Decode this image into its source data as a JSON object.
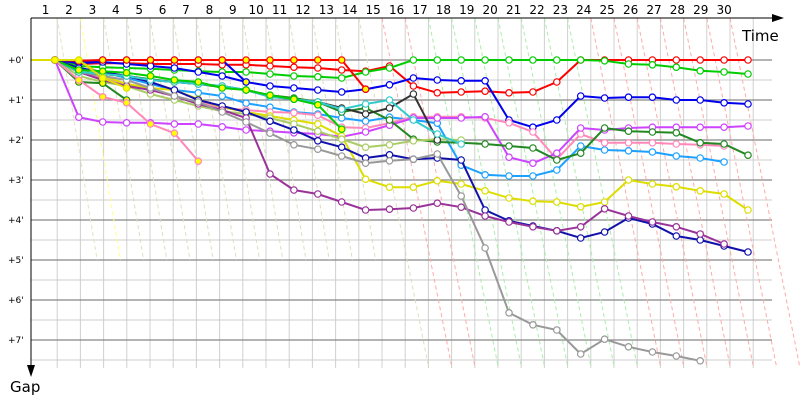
{
  "chart_data": {
    "type": "line",
    "xlabel": "Time",
    "ylabel": "Gap",
    "x_ticks": [
      "1",
      "2",
      "3",
      "4",
      "5",
      "6",
      "7",
      "8",
      "9",
      "10",
      "11",
      "12",
      "13",
      "14",
      "15",
      "16",
      "17",
      "18",
      "19",
      "20",
      "21",
      "22",
      "23",
      "24",
      "25",
      "26",
      "27",
      "28",
      "29",
      "30"
    ],
    "y_ticks": [
      "+0'",
      "+1'",
      "+2'",
      "+3'",
      "+4'",
      "+5'",
      "+6'",
      "+7'"
    ],
    "y_unit": "minutes",
    "ylim": [
      0,
      7.75
    ],
    "y_inverted": true,
    "grid": true,
    "lap_marker_colors": [
      "#e8e0c0",
      "#ffff88",
      "#e0dcc0",
      "#e0dcc0",
      "#e0dcc0",
      "#e0dcc0",
      "#e0dcc0",
      "#e0dcc0",
      "#e0dcc0",
      "#e0dcc0",
      "#e0dcc0",
      "#e0dcc0",
      "#e0dcc0",
      "#e0dcc0",
      "#ffaaaa",
      "#ffaaaa",
      "#aaeeaa",
      "#aaeeaa",
      "#aaeeaa",
      "#aaeeaa",
      "#aaeeaa",
      "#aaeeaa",
      "#aaeeaa",
      "#ffaaaa",
      "#ffaaaa",
      "#ffaaaa",
      "#ffaaaa",
      "#ffaaaa",
      "#ffaaaa",
      "#ffaaaa"
    ],
    "series": [
      {
        "color": "#ff0000",
        "marker_fill": "#ffffff",
        "values": [
          0,
          0,
          0.1,
          0.08,
          0.08,
          0.1,
          0.1,
          0.1,
          0.12,
          0.12,
          0.15,
          0.18,
          0.2,
          0.25,
          0.28,
          0.15,
          0.65,
          0.82,
          0.8,
          0.78,
          0.82,
          0.8,
          0.55,
          0,
          0,
          0,
          0,
          0,
          0,
          0,
          0
        ]
      },
      {
        "color": "#00cc00",
        "marker_fill": "#ffffff",
        "values": [
          0,
          0,
          0.15,
          0.18,
          0.2,
          0.22,
          0.25,
          0.28,
          0.3,
          0.3,
          0.35,
          0.4,
          0.42,
          0.45,
          0.3,
          0.2,
          0,
          0,
          0,
          0,
          0,
          0,
          0,
          0,
          0.02,
          0.1,
          0.12,
          0.18,
          0.27,
          0.3,
          0.35
        ]
      },
      {
        "color": "#0000ee",
        "marker_fill": "#ffffff",
        "values": [
          0,
          0,
          0.08,
          0.05,
          0.1,
          0.15,
          0.2,
          0.3,
          0.4,
          0.55,
          0.65,
          0.7,
          0.75,
          0.8,
          0.73,
          0.62,
          0.45,
          0.5,
          0.52,
          0.52,
          1.5,
          1.68,
          1.5,
          0.9,
          0.95,
          0.93,
          0.93,
          1.0,
          1.0,
          1.07,
          1.1
        ]
      },
      {
        "color": "#1ea0ff",
        "marker_fill": "#ffffff",
        "values": [
          0,
          0,
          0.2,
          0.3,
          0.45,
          0.6,
          0.75,
          0.82,
          0.9,
          1.08,
          1.18,
          1.3,
          1.35,
          1.45,
          1.53,
          1.43,
          1.5,
          1.58,
          2.63,
          2.87,
          2.9,
          2.9,
          2.75,
          2.15,
          2.25,
          2.27,
          2.3,
          2.4,
          2.45,
          2.55
        ]
      },
      {
        "color": "#ff88bb",
        "marker_fill": "#ffffff",
        "values": [
          0,
          0,
          0.3,
          0.45,
          0.6,
          0.75,
          0.9,
          1.05,
          1.2,
          1.25,
          1.3,
          1.32,
          1.38,
          1.68,
          1.7,
          1.58,
          1.42,
          1.42,
          1.42,
          1.45,
          1.57,
          1.8,
          2.48,
          1.85,
          2.07,
          2.07,
          2.07,
          2.1,
          2.12,
          2.15
        ]
      },
      {
        "color": "#cc44ff",
        "marker_fill": "#ffffff",
        "values": [
          0,
          0,
          1.43,
          1.55,
          1.57,
          1.57,
          1.6,
          1.6,
          1.67,
          1.75,
          1.78,
          1.82,
          1.85,
          1.92,
          1.8,
          1.63,
          1.45,
          1.45,
          1.45,
          1.42,
          2.43,
          2.58,
          2.33,
          1.7,
          1.75,
          1.7,
          1.68,
          1.68,
          1.68,
          1.68,
          1.65
        ]
      },
      {
        "color": "#228822",
        "marker_fill": "#ffffff",
        "values": [
          0,
          0,
          0.3,
          0.35,
          0.4,
          0.48,
          0.55,
          0.6,
          0.68,
          0.75,
          0.88,
          0.95,
          1.05,
          1.3,
          1.2,
          1.5,
          1.98,
          2.05,
          2.07,
          2.1,
          2.15,
          2.2,
          2.5,
          2.33,
          1.7,
          1.78,
          1.8,
          1.82,
          2.07,
          2.1,
          2.38
        ]
      },
      {
        "color": "#dddd00",
        "marker_fill": "#ffffff",
        "values": [
          0,
          0,
          0,
          0.4,
          0.6,
          0.7,
          0.75,
          0.98,
          1.18,
          1.3,
          1.4,
          1.5,
          1.6,
          1.9,
          2.98,
          3.18,
          3.18,
          3.02,
          3.1,
          3.27,
          3.45,
          3.53,
          3.55,
          3.67,
          3.55,
          3.0,
          3.1,
          3.17,
          3.27,
          3.35,
          3.75
        ]
      },
      {
        "color": "#aacc66",
        "marker_fill": "#ffffff",
        "values": [
          0,
          0,
          0.4,
          0.55,
          0.65,
          0.85,
          1.0,
          1.15,
          1.28,
          1.35,
          1.45,
          1.6,
          1.78,
          1.98,
          2.18,
          2.12,
          2.02,
          1.98,
          2.0
        ]
      },
      {
        "color": "#1111aa",
        "marker_fill": "#ffffff",
        "values": [
          0,
          0,
          0.2,
          0.3,
          0.4,
          0.55,
          0.75,
          1.0,
          1.15,
          1.3,
          1.53,
          1.75,
          2.02,
          2.18,
          2.45,
          2.37,
          2.48,
          2.45,
          2.5,
          3.75,
          4.02,
          4.15,
          4.27,
          4.45,
          4.3,
          3.95,
          4.1,
          4.4,
          4.5,
          4.65,
          4.8
        ]
      },
      {
        "color": "#993399",
        "marker_fill": "#ffffff",
        "values": [
          0,
          0,
          0.3,
          0.5,
          0.65,
          0.75,
          0.9,
          1.1,
          1.25,
          1.45,
          2.85,
          3.25,
          3.35,
          3.55,
          3.75,
          3.73,
          3.7,
          3.58,
          3.68,
          3.9,
          4.05,
          4.17,
          4.27,
          4.17,
          3.72,
          3.9,
          4.05,
          4.17,
          4.35,
          4.6
        ]
      },
      {
        "color": "#999999",
        "marker_fill": "#ffffff",
        "values": [
          0,
          0,
          0.3,
          0.4,
          0.5,
          0.7,
          0.9,
          1.05,
          1.3,
          1.55,
          1.83,
          2.12,
          2.23,
          2.4,
          2.58,
          2.52,
          2.48,
          2.35,
          3.4,
          4.7,
          6.32,
          6.62,
          6.75,
          7.35,
          6.98,
          7.17,
          7.3,
          7.4,
          7.52
        ]
      },
      {
        "color": "#333333",
        "marker_fill": "#ffffff",
        "values": [
          0,
          0,
          0.3,
          0.35,
          0.4,
          0.5,
          0.55,
          0.6,
          0.65,
          0.75,
          0.92,
          0.98,
          1.05,
          1.2,
          1.35,
          1.2,
          0.85,
          2.0
        ]
      },
      {
        "color": "#33cccc",
        "marker_fill": "#ffffff",
        "values": [
          0,
          0,
          0.3,
          0.35,
          0.4,
          0.5,
          0.55,
          0.6,
          0.65,
          0.75,
          0.92,
          0.98,
          1.05,
          1.23,
          1.1,
          1.0,
          1.5,
          1.85,
          2.1
        ]
      },
      {
        "color": "#00cc00",
        "marker_fill": "#ffff00",
        "values": [
          0,
          0,
          0.25,
          0.28,
          0.32,
          0.4,
          0.5,
          0.55,
          0.7,
          0.75,
          0.88,
          0.98,
          1.12,
          1.73
        ]
      },
      {
        "color": "#228822",
        "marker_fill": "#ffff00",
        "values": [
          0,
          0,
          0.55,
          0.58,
          1.0
        ]
      },
      {
        "color": "#ff88bb",
        "marker_fill": "#ffff00",
        "values": [
          0,
          0,
          0.5,
          0.92,
          1.07,
          1.6,
          1.83,
          2.53
        ]
      },
      {
        "color": "#0000ee",
        "marker_fill": "#ffff00",
        "values": [
          0,
          0,
          0.05,
          0,
          0,
          0,
          0,
          0,
          0,
          0.55
        ]
      },
      {
        "color": "#ff0000",
        "marker_fill": "#ffff00",
        "values": [
          0,
          0,
          0.02,
          0,
          0,
          0,
          0,
          0,
          0,
          0,
          0,
          0,
          0,
          0,
          0.73
        ]
      },
      {
        "color": "#dddd00",
        "marker_fill": "#ffff00",
        "values": [
          0,
          0,
          0,
          0.45,
          0.7
        ]
      }
    ]
  }
}
